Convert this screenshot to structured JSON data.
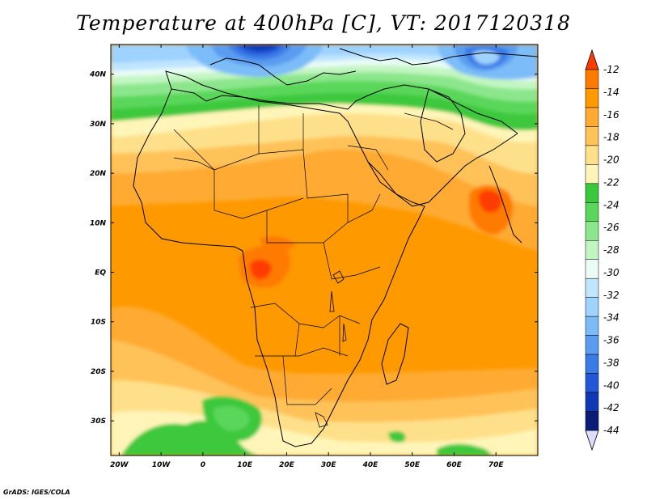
{
  "title": "Temperature at 400hPa [C], VT: 2017120318",
  "credit": "GrADS: IGES/COLA",
  "chart_data": {
    "type": "heatmap",
    "variable": "Temperature at 400hPa",
    "units": "C",
    "valid_time": "2017120318",
    "lon_range": [
      -22,
      80
    ],
    "lat_range": [
      -37,
      46
    ],
    "x_ticks": [
      {
        "value": -20,
        "label": "20W"
      },
      {
        "value": -10,
        "label": "10W"
      },
      {
        "value": 0,
        "label": "0"
      },
      {
        "value": 10,
        "label": "10E"
      },
      {
        "value": 20,
        "label": "20E"
      },
      {
        "value": 30,
        "label": "30E"
      },
      {
        "value": 40,
        "label": "40E"
      },
      {
        "value": 50,
        "label": "50E"
      },
      {
        "value": 60,
        "label": "60E"
      },
      {
        "value": 70,
        "label": "70E"
      }
    ],
    "y_ticks": [
      {
        "value": 40,
        "label": "40N"
      },
      {
        "value": 30,
        "label": "30N"
      },
      {
        "value": 20,
        "label": "20N"
      },
      {
        "value": 10,
        "label": "10N"
      },
      {
        "value": 0,
        "label": "EQ"
      },
      {
        "value": -10,
        "label": "10S"
      },
      {
        "value": -20,
        "label": "20S"
      },
      {
        "value": -30,
        "label": "30S"
      }
    ],
    "colorbar": {
      "levels": [
        "-12",
        "-14",
        "-16",
        "-18",
        "-20",
        "-22",
        "-24",
        "-26",
        "-28",
        "-30",
        "-32",
        "-34",
        "-36",
        "-38",
        "-40",
        "-42",
        "-44"
      ],
      "colors": [
        "#ff3c00",
        "#ff7a00",
        "#ff9900",
        "#ffaa30",
        "#ffc258",
        "#ffe08a",
        "#fff5b8",
        "#3cc83c",
        "#5ad75a",
        "#8ce68c",
        "#c3f5c3",
        "#eafcf5",
        "#bfe5ff",
        "#9ed2ff",
        "#7bbcf8",
        "#5a9cf0",
        "#3a7ce6",
        "#2258d8",
        "#1038b4",
        "#0a1c78",
        "#ddddff"
      ]
    },
    "features": [
      {
        "name": "warm-core-arabian-sea",
        "lon": 70,
        "lat": 11,
        "value": -13
      },
      {
        "name": "warm-core-central-africa",
        "lon": 12,
        "lat": 1,
        "value": -13
      },
      {
        "name": "cold-core-mediterranean",
        "lon": 12,
        "lat": 43,
        "value": -42
      },
      {
        "name": "cold-core-central-asia",
        "lon": 66,
        "lat": 41,
        "value": -40
      }
    ]
  }
}
